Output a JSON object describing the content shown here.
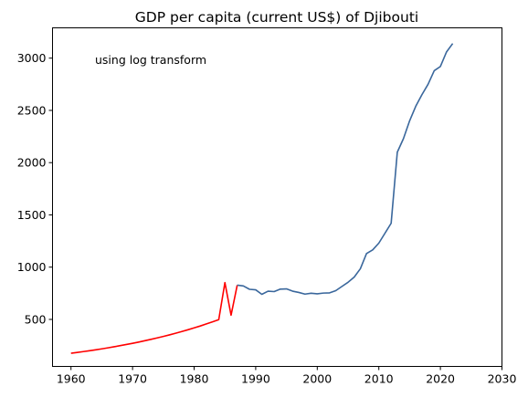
{
  "chart_data": {
    "type": "line",
    "title": "GDP per capita (current US$) of Djibouti",
    "annotation": "using log transform",
    "xlabel": "",
    "ylabel": "",
    "xlim": [
      1957,
      2030
    ],
    "ylim": [
      50,
      3290
    ],
    "x_ticks": [
      1960,
      1970,
      1980,
      1990,
      2000,
      2010,
      2020,
      2030
    ],
    "y_ticks": [
      500,
      1000,
      1500,
      2000,
      2500,
      3000
    ],
    "grid": false,
    "legend": "none",
    "series": [
      {
        "color": "#ff0000",
        "points": [
          [
            1960,
            176
          ],
          [
            1961,
            184
          ],
          [
            1962,
            192
          ],
          [
            1963,
            200
          ],
          [
            1964,
            209
          ],
          [
            1965,
            218
          ],
          [
            1966,
            228
          ],
          [
            1967,
            238
          ],
          [
            1968,
            249
          ],
          [
            1969,
            260
          ],
          [
            1970,
            271
          ],
          [
            1971,
            283
          ],
          [
            1972,
            296
          ],
          [
            1973,
            309
          ],
          [
            1974,
            323
          ],
          [
            1975,
            337
          ],
          [
            1976,
            352
          ],
          [
            1977,
            368
          ],
          [
            1978,
            384
          ],
          [
            1979,
            401
          ],
          [
            1980,
            419
          ],
          [
            1981,
            437
          ],
          [
            1982,
            457
          ],
          [
            1983,
            477
          ],
          [
            1984,
            498
          ],
          [
            1985,
            852
          ],
          [
            1986,
            540
          ],
          [
            1987,
            828
          ]
        ]
      },
      {
        "color": "#3a679c",
        "points": [
          [
            1987,
            828
          ],
          [
            1988,
            820
          ],
          [
            1989,
            788
          ],
          [
            1990,
            783
          ],
          [
            1991,
            740
          ],
          [
            1992,
            770
          ],
          [
            1993,
            766
          ],
          [
            1994,
            790
          ],
          [
            1995,
            792
          ],
          [
            1996,
            770
          ],
          [
            1997,
            758
          ],
          [
            1998,
            742
          ],
          [
            1999,
            750
          ],
          [
            2000,
            745
          ],
          [
            2001,
            752
          ],
          [
            2002,
            754
          ],
          [
            2003,
            775
          ],
          [
            2004,
            815
          ],
          [
            2005,
            855
          ],
          [
            2006,
            905
          ],
          [
            2007,
            985
          ],
          [
            2008,
            1130
          ],
          [
            2009,
            1165
          ],
          [
            2010,
            1230
          ],
          [
            2011,
            1325
          ],
          [
            2012,
            1420
          ],
          [
            2013,
            2100
          ],
          [
            2014,
            2230
          ],
          [
            2015,
            2400
          ],
          [
            2016,
            2540
          ],
          [
            2017,
            2650
          ],
          [
            2018,
            2750
          ],
          [
            2019,
            2880
          ],
          [
            2020,
            2920
          ],
          [
            2021,
            3060
          ],
          [
            2022,
            3140
          ]
        ]
      }
    ]
  }
}
